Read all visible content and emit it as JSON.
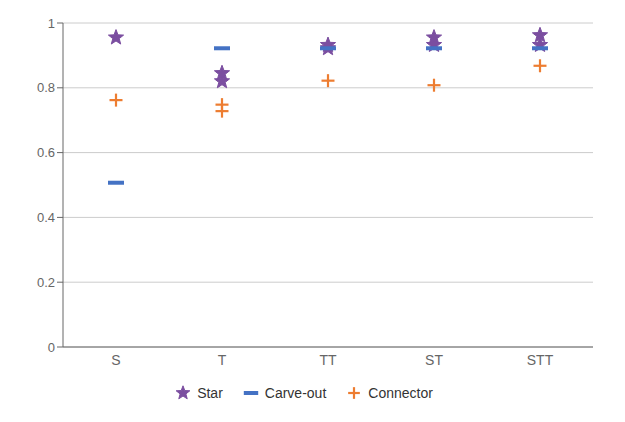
{
  "chart_data": {
    "type": "scatter",
    "categories": [
      "S",
      "T",
      "TT",
      "ST",
      "STT"
    ],
    "series": [
      {
        "name": "Star",
        "color": "#7B4EA0",
        "marker": "star",
        "values": [
          [
            0.955
          ],
          [
            0.82,
            0.845
          ],
          [
            0.922,
            0.932
          ],
          [
            0.932,
            0.955
          ],
          [
            0.932,
            0.962
          ]
        ]
      },
      {
        "name": "Carve-out",
        "color": "#4472C4",
        "marker": "hline",
        "values": [
          [
            0.507
          ],
          [
            0.922
          ],
          [
            0.922
          ],
          [
            0.922
          ],
          [
            0.922
          ]
        ]
      },
      {
        "name": "Connector",
        "color": "#ED7D31",
        "marker": "plus",
        "values": [
          [
            0.762
          ],
          [
            0.728,
            0.748
          ],
          [
            0.822
          ],
          [
            0.808
          ],
          [
            0.868
          ]
        ]
      }
    ],
    "ylim": [
      0,
      1
    ],
    "yticks": [
      0,
      0.2,
      0.4,
      0.6,
      0.8,
      1
    ],
    "grid": true,
    "legend": "bottom"
  }
}
